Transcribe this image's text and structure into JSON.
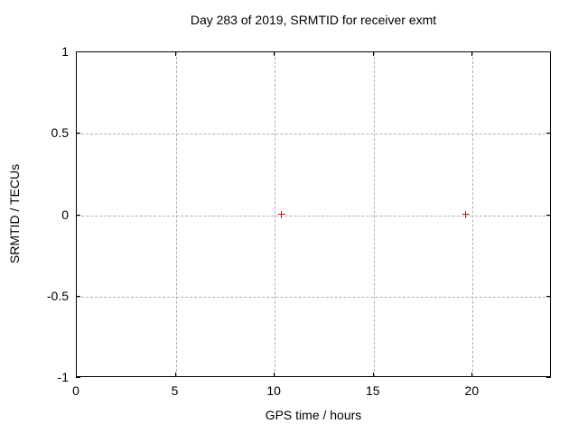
{
  "title": "Day 283 of 2019, SRMTID for receiver exmt",
  "colors": {
    "background": "#ffffff",
    "border": "#000000",
    "grid": "#b0b0b0",
    "text": "#000000",
    "marker": "#ff0000"
  },
  "chart_data": {
    "type": "scatter",
    "title": "Day 283 of 2019, SRMTID for receiver exmt",
    "xlabel": "GPS time / hours",
    "ylabel": "SRMTID / TECUs",
    "xlim": [
      0,
      24
    ],
    "ylim": [
      -1,
      1
    ],
    "xticks": [
      0,
      5,
      10,
      15,
      20
    ],
    "xtick_labels": [
      "0",
      "5",
      "10",
      "15",
      "20"
    ],
    "yticks": [
      -1,
      -0.5,
      0,
      0.5,
      1
    ],
    "ytick_labels": [
      "-1",
      "-0.5",
      "0",
      "0.5",
      "1"
    ],
    "grid": true,
    "grid_style": "dashed",
    "legend": "none",
    "series": [
      {
        "name": "SRMTID",
        "marker": "plus",
        "color": "#ff0000",
        "points": [
          {
            "x": 10.4,
            "y": 0.0
          },
          {
            "x": 19.7,
            "y": 0.0
          }
        ]
      }
    ]
  }
}
